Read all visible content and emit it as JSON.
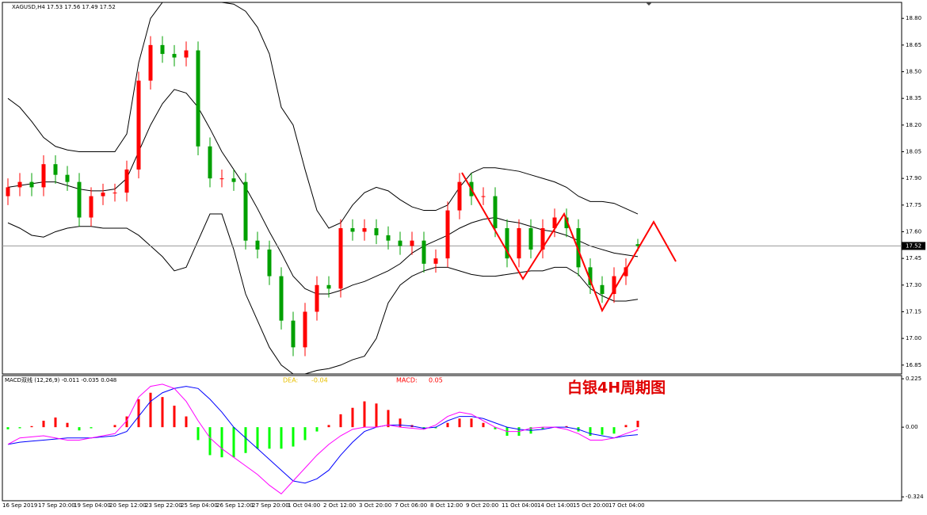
{
  "chart_data": [
    {
      "type": "candlestick",
      "title": "XAGUSD,H4  17.53 17.56 17.49 17.52",
      "categories": [
        "16 Sep 2019",
        null,
        null,
        "17 Sep 20:00",
        null,
        null,
        "19 Sep 04:00",
        null,
        null,
        "20 Sep 12:00",
        null,
        null,
        "23 Sep 22:00",
        null,
        null,
        "25 Sep 04:00",
        null,
        null,
        "26 Sep 12:00",
        null,
        null,
        "27 Sep 20:00",
        null,
        null,
        "1 Oct 04:00",
        null,
        null,
        "2 Oct 12:00",
        null,
        null,
        "3 Oct 20:00",
        null,
        null,
        "7 Oct 06:00",
        null,
        null,
        "8 Oct 12:00",
        null,
        null,
        "9 Oct 20:00",
        null,
        null,
        "11 Oct 04:00",
        null,
        null,
        "14 Oct 14:00",
        null,
        null,
        "15 Oct 20:00",
        null,
        null,
        "17 Oct 04:00",
        null,
        null
      ],
      "open": [
        17.8,
        17.85,
        17.88,
        17.85,
        17.98,
        17.92,
        17.88,
        17.68,
        17.8,
        17.82,
        17.82,
        17.95,
        18.45,
        18.65,
        18.6,
        18.58,
        18.62,
        18.08,
        17.9,
        17.9,
        17.88,
        17.55,
        17.5,
        17.35,
        17.1,
        16.95,
        17.15,
        17.3,
        17.28,
        17.62,
        17.6,
        17.62,
        17.58,
        17.55,
        17.52,
        17.55,
        17.42,
        17.45,
        17.72,
        17.88,
        17.8,
        17.8,
        17.62,
        17.45,
        17.62,
        17.5,
        17.62,
        17.68,
        17.62,
        17.4,
        17.3,
        17.25,
        17.35,
        17.53
      ],
      "high": [
        17.9,
        17.93,
        17.93,
        18.03,
        18.03,
        17.97,
        17.93,
        17.85,
        17.87,
        17.87,
        18.0,
        18.5,
        18.7,
        18.7,
        18.65,
        18.67,
        18.67,
        18.13,
        17.95,
        17.95,
        17.93,
        17.6,
        17.55,
        17.4,
        17.15,
        17.2,
        17.35,
        17.35,
        17.67,
        17.67,
        17.67,
        17.67,
        17.63,
        17.6,
        17.6,
        17.6,
        17.5,
        17.77,
        17.93,
        17.93,
        17.85,
        17.85,
        17.67,
        17.67,
        17.67,
        17.67,
        17.73,
        17.73,
        17.67,
        17.45,
        17.35,
        17.4,
        17.45,
        17.56
      ],
      "low": [
        17.75,
        17.8,
        17.8,
        17.8,
        17.87,
        17.83,
        17.63,
        17.63,
        17.75,
        17.77,
        17.77,
        17.9,
        18.4,
        18.55,
        18.53,
        18.53,
        18.03,
        17.85,
        17.85,
        17.83,
        17.5,
        17.45,
        17.3,
        17.05,
        16.9,
        16.9,
        17.1,
        17.23,
        17.23,
        17.55,
        17.55,
        17.53,
        17.5,
        17.47,
        17.47,
        17.37,
        17.37,
        17.4,
        17.67,
        17.75,
        17.75,
        17.57,
        17.4,
        17.4,
        17.45,
        17.45,
        17.57,
        17.57,
        17.35,
        17.25,
        17.2,
        17.2,
        17.3,
        17.49
      ],
      "close": [
        17.85,
        17.88,
        17.85,
        17.98,
        17.92,
        17.88,
        17.68,
        17.8,
        17.82,
        17.82,
        17.95,
        18.45,
        18.65,
        18.6,
        18.58,
        18.62,
        18.08,
        17.9,
        17.9,
        17.88,
        17.55,
        17.5,
        17.35,
        17.1,
        16.95,
        17.15,
        17.3,
        17.28,
        17.62,
        17.6,
        17.62,
        17.58,
        17.55,
        17.52,
        17.55,
        17.42,
        17.45,
        17.72,
        17.88,
        17.8,
        17.8,
        17.62,
        17.45,
        17.62,
        17.5,
        17.62,
        17.68,
        17.62,
        17.4,
        17.3,
        17.25,
        17.35,
        17.4,
        17.52
      ],
      "up_color": "#ff0000",
      "down_color": "#00a000",
      "bands": {
        "color": "#000000",
        "upper": [
          18.35,
          18.3,
          18.22,
          18.13,
          18.08,
          18.06,
          18.05,
          18.05,
          18.05,
          18.05,
          18.15,
          18.55,
          18.8,
          18.89,
          18.89,
          18.89,
          18.89,
          18.89,
          18.89,
          18.88,
          18.84,
          18.75,
          18.6,
          18.3,
          18.2,
          17.95,
          17.72,
          17.62,
          17.65,
          17.75,
          17.82,
          17.85,
          17.83,
          17.78,
          17.74,
          17.72,
          17.72,
          17.75,
          17.85,
          17.93,
          17.96,
          17.96,
          17.95,
          17.94,
          17.92,
          17.9,
          17.88,
          17.85,
          17.8,
          17.77,
          17.77,
          17.76,
          17.73,
          17.7
        ],
        "middle": [
          17.85,
          17.86,
          17.87,
          17.88,
          17.88,
          17.86,
          17.84,
          17.83,
          17.83,
          17.84,
          17.9,
          18.05,
          18.2,
          18.32,
          18.4,
          18.38,
          18.3,
          18.18,
          18.05,
          17.95,
          17.85,
          17.73,
          17.6,
          17.48,
          17.35,
          17.28,
          17.25,
          17.25,
          17.27,
          17.3,
          17.32,
          17.35,
          17.38,
          17.42,
          17.48,
          17.52,
          17.55,
          17.58,
          17.62,
          17.65,
          17.67,
          17.68,
          17.66,
          17.65,
          17.63,
          17.61,
          17.6,
          17.58,
          17.55,
          17.52,
          17.5,
          17.48,
          17.47,
          17.46
        ],
        "lower": [
          17.65,
          17.62,
          17.58,
          17.57,
          17.6,
          17.62,
          17.63,
          17.63,
          17.62,
          17.62,
          17.62,
          17.58,
          17.52,
          17.46,
          17.38,
          17.4,
          17.55,
          17.7,
          17.7,
          17.5,
          17.25,
          17.1,
          16.95,
          16.85,
          16.8,
          16.8,
          16.82,
          16.83,
          16.85,
          16.88,
          16.9,
          17.0,
          17.2,
          17.3,
          17.35,
          17.38,
          17.4,
          17.4,
          17.38,
          17.36,
          17.35,
          17.35,
          17.36,
          17.37,
          17.38,
          17.38,
          17.4,
          17.4,
          17.36,
          17.28,
          17.24,
          17.21,
          17.21,
          17.22
        ]
      },
      "last_price": 17.52,
      "ylim": [
        16.8,
        18.89
      ],
      "yticks": [
        {
          "value": 18.8,
          "label": "18.80"
        },
        18.65,
        {
          "value": 18.5,
          "label": "18.50"
        },
        18.35,
        {
          "value": 18.2,
          "label": "18.20"
        },
        18.05,
        {
          "value": 17.9,
          "label": "17.90"
        },
        17.75,
        {
          "value": 17.6,
          "label": "17.60"
        },
        17.45,
        {
          "value": 17.3,
          "label": "17.30"
        },
        17.15,
        {
          "value": 17.0,
          "label": "17.00"
        },
        16.85
      ]
    },
    {
      "type": "macd",
      "title": "MACD双线 (12,26,9) -0.011 -0.035 0.048",
      "dea_label": "DEA:",
      "dea_value": "-0.04",
      "macd_label": "MACD:",
      "macd_value": "0.05",
      "annotation": "白银4H周期图",
      "histogram": {
        "pos_color": "#ff0000",
        "neg_color": "#00ff00",
        "values": [
          -0.01,
          -0.005,
          0.005,
          0.03,
          0.045,
          0.02,
          -0.015,
          -0.005,
          0.0,
          0.01,
          0.05,
          0.13,
          0.16,
          0.14,
          0.1,
          0.05,
          -0.06,
          -0.13,
          -0.14,
          -0.14,
          -0.12,
          -0.1,
          -0.1,
          -0.1,
          -0.09,
          -0.06,
          -0.02,
          0.01,
          0.06,
          0.09,
          0.12,
          0.11,
          0.08,
          0.04,
          0.01,
          -0.01,
          -0.005,
          0.02,
          0.04,
          0.04,
          0.02,
          -0.01,
          -0.04,
          -0.04,
          -0.03,
          -0.01,
          0.0,
          0.005,
          -0.02,
          -0.04,
          -0.035,
          -0.03,
          0.01,
          0.03
        ]
      },
      "macd_line": {
        "color": "#0000ff",
        "values": [
          -0.08,
          -0.07,
          -0.065,
          -0.06,
          -0.055,
          -0.05,
          -0.05,
          -0.05,
          -0.045,
          -0.04,
          -0.02,
          0.05,
          0.12,
          0.16,
          0.18,
          0.19,
          0.18,
          0.13,
          0.07,
          0.0,
          -0.05,
          -0.1,
          -0.15,
          -0.2,
          -0.25,
          -0.26,
          -0.24,
          -0.2,
          -0.13,
          -0.07,
          -0.02,
          0.0,
          0.01,
          0.01,
          0.005,
          -0.005,
          0.0,
          0.03,
          0.05,
          0.05,
          0.04,
          0.02,
          0.0,
          -0.01,
          -0.015,
          -0.01,
          0.0,
          0.0,
          -0.01,
          -0.03,
          -0.04,
          -0.05,
          -0.04,
          -0.035
        ]
      },
      "signal_line": {
        "color": "#ff00ff",
        "values": [
          -0.08,
          -0.05,
          -0.045,
          -0.04,
          -0.05,
          -0.06,
          -0.06,
          -0.05,
          -0.04,
          -0.03,
          0.03,
          0.14,
          0.19,
          0.2,
          0.18,
          0.12,
          0.03,
          -0.05,
          -0.1,
          -0.14,
          -0.18,
          -0.22,
          -0.27,
          -0.31,
          -0.25,
          -0.19,
          -0.13,
          -0.08,
          -0.04,
          -0.01,
          0.0,
          0.0,
          0.01,
          0.0,
          -0.005,
          -0.01,
          0.01,
          0.05,
          0.07,
          0.06,
          0.03,
          0.0,
          -0.02,
          -0.02,
          -0.005,
          0.0,
          0.0,
          -0.01,
          -0.03,
          -0.06,
          -0.06,
          -0.05,
          -0.03,
          -0.011
        ]
      },
      "ylim": [
        -0.342,
        0.24
      ],
      "yticks": [
        0.225,
        {
          "value": 0,
          "label": "0.00"
        },
        -0.324
      ]
    }
  ]
}
